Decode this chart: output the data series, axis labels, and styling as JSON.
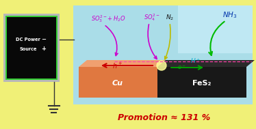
{
  "bg_color": "#f0f077",
  "panel_bg": "#aadde8",
  "box_bg": "#080808",
  "box_border_outer": "#b8b8b8",
  "box_border_inner": "#33cc33",
  "cu_color": "#e07840",
  "cu_side_color": "#a05020",
  "fes2_color": "#181818",
  "fes2_side_color": "#0a0a0a",
  "cu_label": "Cu",
  "fes2_label": "FeS₂",
  "dc_line1": "DC Power",
  "dc_line2": "Source",
  "minus_label": "−",
  "plus_label": "+",
  "promotion_text": "Promotion ≈ 131 %",
  "promotion_color": "#cc0000",
  "so3_color": "#cc00cc",
  "so4_color": "#cc00cc",
  "n2_color": "#111111",
  "nh3_color": "#0033aa",
  "h_plus_color": "#00aacc",
  "e_minus_color": "#00aa00",
  "h_hole_color": "#cc0000",
  "arrow_so3_color": "#cc00cc",
  "arrow_so4_color": "#cc00cc",
  "arrow_nh3_color": "#00bb00",
  "arrow_n2_color": "#bbbb00",
  "glow_color": "#ffff99"
}
